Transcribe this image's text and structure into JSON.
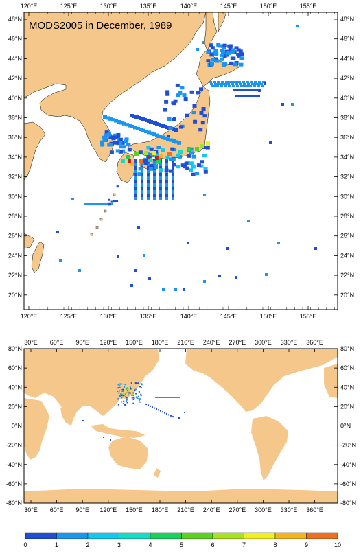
{
  "title": "MODS2005 in December, 1989",
  "colors": {
    "land": "#f5c78b",
    "ocean": "#ffffff",
    "frame": "#000000"
  },
  "top_map": {
    "lon_labels": [
      "120°E",
      "125°E",
      "130°E",
      "135°E",
      "140°E",
      "145°E",
      "150°E",
      "155°E"
    ],
    "lat_labels": [
      "48°N",
      "46°N",
      "44°N",
      "42°N",
      "40°N",
      "38°N",
      "36°N",
      "34°N",
      "32°N",
      "30°N",
      "28°N",
      "26°N",
      "24°N",
      "22°N",
      "20°N"
    ]
  },
  "bottom_map": {
    "lon_labels": [
      "30°E",
      "60°E",
      "90°E",
      "120°E",
      "150°E",
      "180°E",
      "210°E",
      "240°E",
      "270°E",
      "300°E",
      "330°E",
      "360°E"
    ],
    "lat_labels": [
      "80°N",
      "60°N",
      "40°N",
      "20°N",
      "0°N",
      "-20°N",
      "-40°N",
      "-60°N",
      "-80°N"
    ]
  },
  "colorbar": {
    "tick_labels": [
      "0",
      "1",
      "2",
      "3",
      "4",
      "5",
      "6",
      "7",
      "8",
      "9",
      "10"
    ],
    "colors": [
      "#1f4fd6",
      "#1a96f0",
      "#12c8ee",
      "#15dcc3",
      "#18d25a",
      "#5ad21e",
      "#a8e11e",
      "#f0f01e",
      "#f5b41e",
      "#f06e1e"
    ]
  }
}
